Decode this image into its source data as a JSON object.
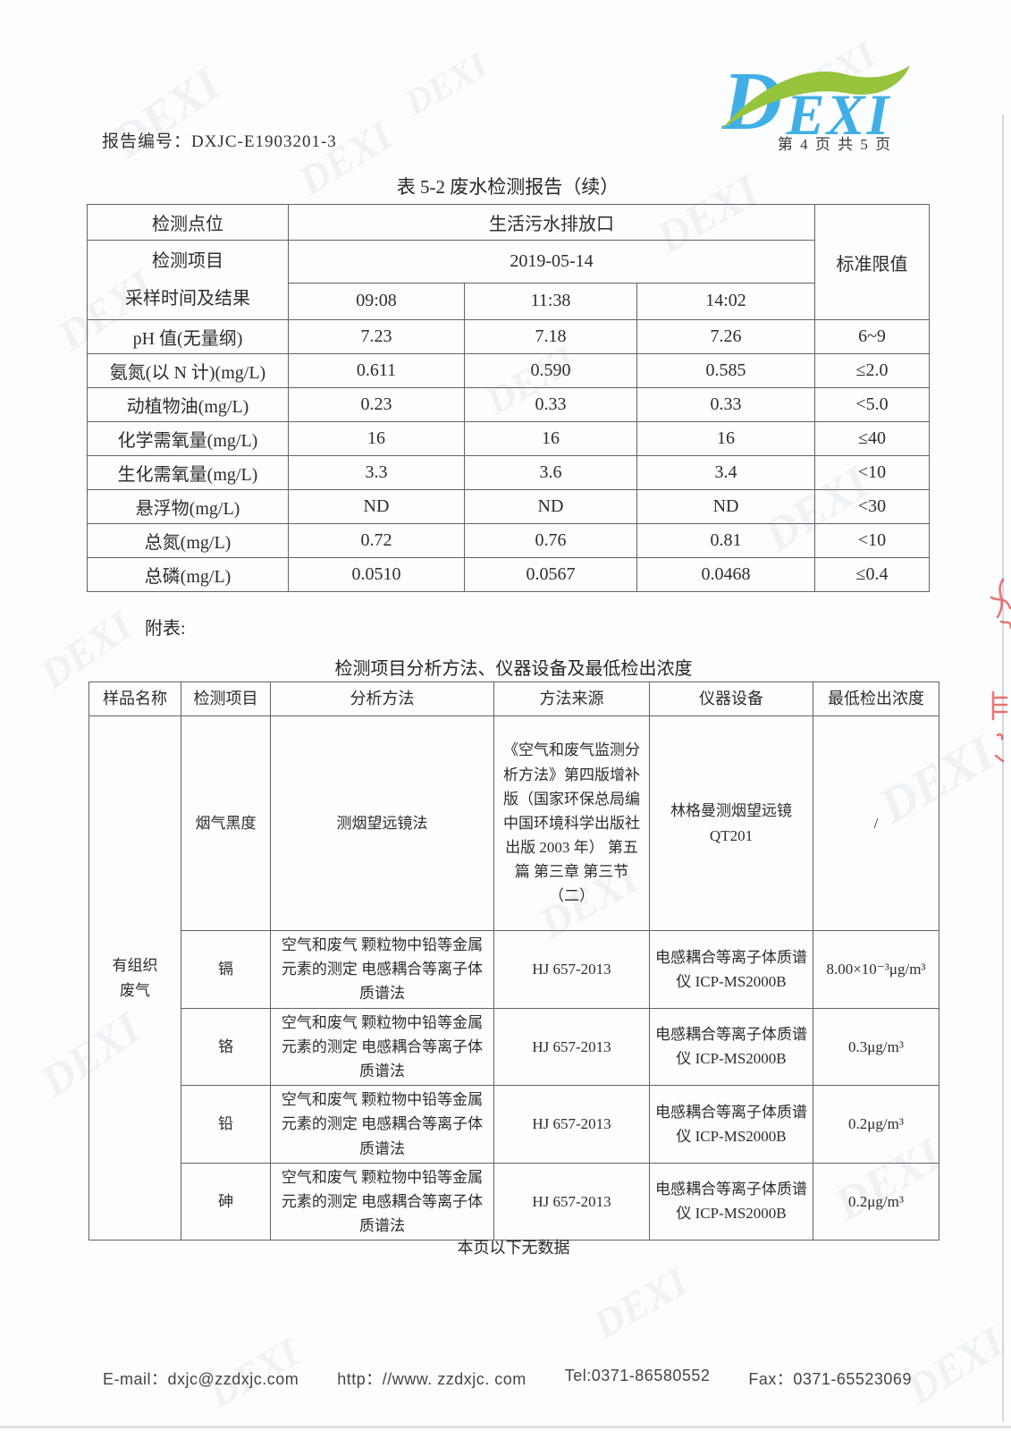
{
  "header": {
    "report_no": "报告编号：DXJC-E1903201-3",
    "page_info": "第 4 页 共 5 页",
    "logo_d": "D",
    "logo_rest": "EXI",
    "logo_blue": "#41afe5",
    "logo_green": "#96c43c"
  },
  "table1": {
    "title": "表 5-2 废水检测报告（续）",
    "header": {
      "point_label": "检测点位",
      "point_value": "生活污水排放口",
      "item_label": "检测项目\n采样时间及结果",
      "date": "2019-05-14",
      "times": [
        "09:08",
        "11:38",
        "14:02"
      ],
      "limit_label": "标准限值"
    },
    "rows": [
      {
        "item": "pH 值(无量纲)",
        "v1": "7.23",
        "v2": "7.18",
        "v3": "7.26",
        "limit": "6~9"
      },
      {
        "item": "氨氮(以 N 计)(mg/L)",
        "v1": "0.611",
        "v2": "0.590",
        "v3": "0.585",
        "limit": "≤2.0"
      },
      {
        "item": "动植物油(mg/L)",
        "v1": "0.23",
        "v2": "0.33",
        "v3": "0.33",
        "limit": "<5.0"
      },
      {
        "item": "化学需氧量(mg/L)",
        "v1": "16",
        "v2": "16",
        "v3": "16",
        "limit": "≤40"
      },
      {
        "item": "生化需氧量(mg/L)",
        "v1": "3.3",
        "v2": "3.6",
        "v3": "3.4",
        "limit": "<10"
      },
      {
        "item": "悬浮物(mg/L)",
        "v1": "ND",
        "v2": "ND",
        "v3": "ND",
        "limit": "<30"
      },
      {
        "item": "总氮(mg/L)",
        "v1": "0.72",
        "v2": "0.76",
        "v3": "0.81",
        "limit": "<10"
      },
      {
        "item": "总磷(mg/L)",
        "v1": "0.0510",
        "v2": "0.0567",
        "v3": "0.0468",
        "limit": "≤0.4"
      }
    ]
  },
  "appendix_label": "附表:",
  "table2": {
    "title": "检测项目分析方法、仪器设备及最低检出浓度",
    "headers": [
      "样品名称",
      "检测项目",
      "分析方法",
      "方法来源",
      "仪器设备",
      "最低检出浓度"
    ],
    "sample_name": "有组织\n废气",
    "rows": [
      {
        "item": "烟气黑度",
        "method": "测烟望远镜法",
        "source": "《空气和废气监测分析方法》第四版增补版（国家环保总局编 中国环境科学出版社出版 2003 年） 第五篇 第三章 第三节（二）",
        "instrument": "林格曼测烟望远镜\nQT201",
        "lod": "/"
      },
      {
        "item": "镉",
        "method": "空气和废气 颗粒物中铅等金属元素的测定 电感耦合等离子体质谱法",
        "source": "HJ 657-2013",
        "instrument": "电感耦合等离子体质谱仪 ICP-MS2000B",
        "lod": "8.00×10⁻³μg/m³"
      },
      {
        "item": "铬",
        "method": "空气和废气 颗粒物中铅等金属元素的测定 电感耦合等离子体质谱法",
        "source": "HJ 657-2013",
        "instrument": "电感耦合等离子体质谱仪 ICP-MS2000B",
        "lod": "0.3μg/m³"
      },
      {
        "item": "铅",
        "method": "空气和废气 颗粒物中铅等金属元素的测定 电感耦合等离子体质谱法",
        "source": "HJ 657-2013",
        "instrument": "电感耦合等离子体质谱仪 ICP-MS2000B",
        "lod": "0.2μg/m³"
      },
      {
        "item": "砷",
        "method": "空气和废气 颗粒物中铅等金属元素的测定 电感耦合等离子体质谱法",
        "source": "HJ 657-2013",
        "instrument": "电感耦合等离子体质谱仪 ICP-MS2000B",
        "lod": "0.2μg/m³"
      }
    ],
    "footer_note": "本页以下无数据"
  },
  "footer": {
    "email": "E-mail：dxjc@zzdxjc.com",
    "url": "http：//www. zzdxjc. com",
    "tel": "Tel:0371-86580552",
    "fax": "Fax：0371-65523069"
  },
  "decor": {
    "watermark": "DEXI"
  }
}
